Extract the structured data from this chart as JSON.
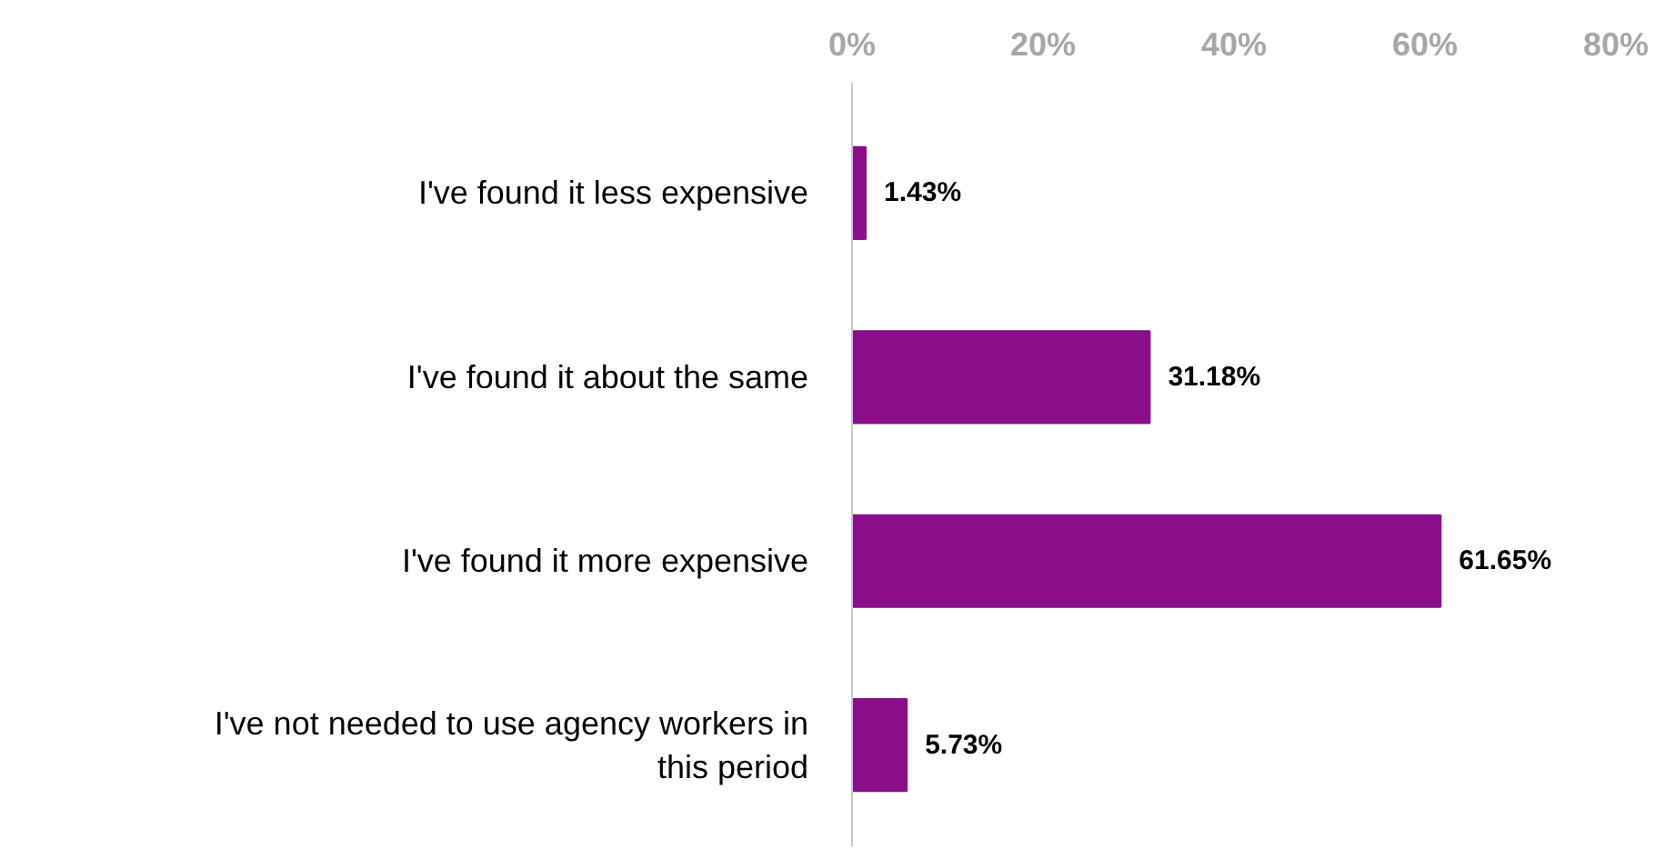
{
  "chart_data": {
    "type": "bar",
    "orientation": "horizontal",
    "categories": [
      "I've found it less expensive",
      "I've found it about the same",
      "I've found it more expensive",
      "I've not needed to use agency workers in this period"
    ],
    "values": [
      1.43,
      31.18,
      61.65,
      5.73
    ],
    "value_labels": [
      "1.43%",
      "31.18%",
      "61.65%",
      "5.73%"
    ],
    "color": "#8b0e8b",
    "xlim": [
      0,
      80
    ],
    "xticks": [
      {
        "value": 0,
        "label": "0%"
      },
      {
        "value": 20,
        "label": "20%"
      },
      {
        "value": 40,
        "label": "40%"
      },
      {
        "value": 60,
        "label": "60%"
      },
      {
        "value": 80,
        "label": "80%"
      }
    ],
    "grid": false
  }
}
